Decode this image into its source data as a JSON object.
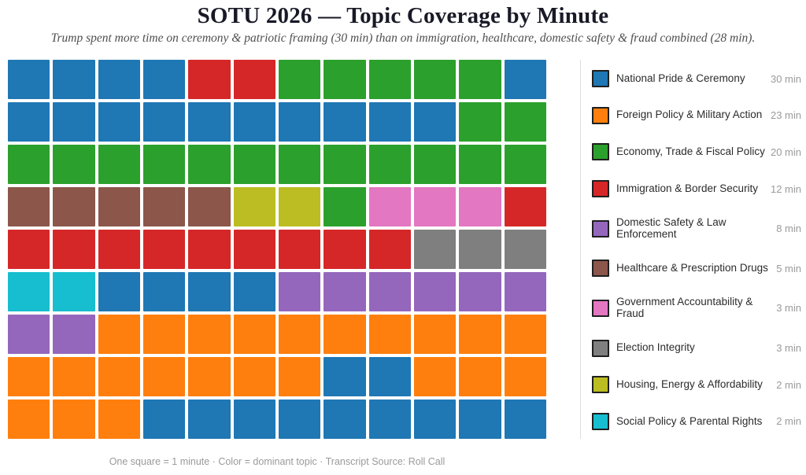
{
  "header": {
    "title": "SOTU 2026 — Topic Coverage by Minute",
    "subtitle": "Trump spent more time on ceremony & patriotic framing (30 min) than on immigration, healthcare, domestic safety & fraud combined (28 min)."
  },
  "footer": {
    "note": "One square = 1 minute  ·  Color = dominant topic  ·  Transcript Source: Roll Call"
  },
  "chart_data": {
    "type": "waffle",
    "title": "SOTU 2026 — Topic Coverage by Minute",
    "subtitle": "Trump spent more time on ceremony & patriotic framing (30 min) than on immigration, healthcare, domestic safety & fraud combined (28 min).",
    "unit": "One square = 1 minute",
    "grid": {
      "rows": 9,
      "cols": 12,
      "total_squares": 108
    },
    "legend_position": "right",
    "value_suffix": " min",
    "topics": [
      {
        "id": "pride",
        "label": "National Pride & Ceremony",
        "minutes": 30,
        "color": "#1f77b4"
      },
      {
        "id": "foreign",
        "label": "Foreign Policy & Military Action",
        "minutes": 23,
        "color": "#ff7f0e"
      },
      {
        "id": "economy",
        "label": "Economy, Trade & Fiscal Policy",
        "minutes": 20,
        "color": "#2ca02c"
      },
      {
        "id": "immigration",
        "label": "Immigration & Border Security",
        "minutes": 12,
        "color": "#d62728"
      },
      {
        "id": "safety",
        "label": "Domestic Safety & Law Enforcement",
        "minutes": 8,
        "color": "#9467bd"
      },
      {
        "id": "health",
        "label": "Healthcare & Prescription Drugs",
        "minutes": 5,
        "color": "#8c564b"
      },
      {
        "id": "fraud",
        "label": "Government Accountability & Fraud",
        "minutes": 3,
        "color": "#e377c2"
      },
      {
        "id": "election",
        "label": "Election Integrity",
        "minutes": 3,
        "color": "#7f7f7f"
      },
      {
        "id": "housing",
        "label": "Housing, Energy & Affordability",
        "minutes": 2,
        "color": "#bcbd22"
      },
      {
        "id": "social",
        "label": "Social Policy & Parental Rights",
        "minutes": 2,
        "color": "#17becf"
      }
    ],
    "cells": [
      [
        "pride",
        "pride",
        "pride",
        "pride",
        "immigration",
        "immigration",
        "economy",
        "economy",
        "economy",
        "economy",
        "economy",
        "pride"
      ],
      [
        "pride",
        "pride",
        "pride",
        "pride",
        "pride",
        "pride",
        "pride",
        "pride",
        "pride",
        "pride",
        "economy",
        "economy"
      ],
      [
        "economy",
        "economy",
        "economy",
        "economy",
        "economy",
        "economy",
        "economy",
        "economy",
        "economy",
        "economy",
        "economy",
        "economy"
      ],
      [
        "health",
        "health",
        "health",
        "health",
        "health",
        "housing",
        "housing",
        "economy",
        "fraud",
        "fraud",
        "fraud",
        "immigration"
      ],
      [
        "immigration",
        "immigration",
        "immigration",
        "immigration",
        "immigration",
        "immigration",
        "immigration",
        "immigration",
        "immigration",
        "election",
        "election",
        "election"
      ],
      [
        "social",
        "social",
        "pride",
        "pride",
        "pride",
        "pride",
        "safety",
        "safety",
        "safety",
        "safety",
        "safety",
        "safety"
      ],
      [
        "safety",
        "safety",
        "foreign",
        "foreign",
        "foreign",
        "foreign",
        "foreign",
        "foreign",
        "foreign",
        "foreign",
        "foreign",
        "foreign"
      ],
      [
        "foreign",
        "foreign",
        "foreign",
        "foreign",
        "foreign",
        "foreign",
        "foreign",
        "pride",
        "pride",
        "foreign",
        "foreign",
        "foreign"
      ],
      [
        "foreign",
        "foreign",
        "foreign",
        "pride",
        "pride",
        "pride",
        "pride",
        "pride",
        "pride",
        "pride",
        "pride",
        "pride"
      ]
    ]
  }
}
